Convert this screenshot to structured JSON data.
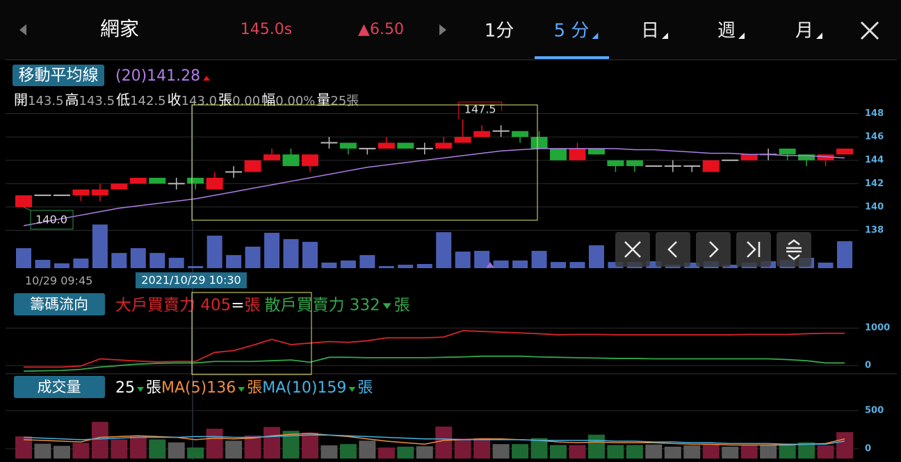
{
  "header": {
    "stock": "網家",
    "price": "145.0s",
    "change": "▲6.50",
    "tabs": [
      "1分",
      "5 分",
      "日",
      "週",
      "月"
    ],
    "active_tab": 1
  },
  "price_chart": {
    "type": "candlestick",
    "ma_label": "移動平均線",
    "ma_value": "(20)141.28",
    "ohlc": [
      {
        "label": "開",
        "value": "143.5"
      },
      {
        "label": "高",
        "value": "143.5"
      },
      {
        "label": "低",
        "value": "142.5"
      },
      {
        "label": "收",
        "value": "143.0"
      },
      {
        "label": "張",
        "value": "0.00"
      },
      {
        "label": "幅",
        "value": "0.00%"
      },
      {
        "label": "量",
        "value": "25張"
      }
    ],
    "ylim": [
      137.2,
      148.8
    ],
    "yticks": [
      138,
      140,
      142,
      144,
      146,
      148
    ],
    "open": [
      140.0,
      141.0,
      141.0,
      141.0,
      141.0,
      141.5,
      142.0,
      142.5,
      142.0,
      142.5,
      141.5,
      143.0,
      143.0,
      144.0,
      144.5,
      143.5,
      145.5,
      145.5,
      145.0,
      145.0,
      145.5,
      145.0,
      145.0,
      145.5,
      146.0,
      146.5,
      146.5,
      146.0,
      145.0,
      144.0,
      145.0,
      144.0,
      144.0,
      143.5,
      143.5,
      143.5,
      143.0,
      144.0,
      144.0,
      144.5,
      145.0,
      144.5,
      144.0,
      144.5
    ],
    "high": [
      141.0,
      141.0,
      141.0,
      141.5,
      142.0,
      142.0,
      142.5,
      142.5,
      142.5,
      142.5,
      143.0,
      143.5,
      144.0,
      145.0,
      145.0,
      144.5,
      146.0,
      145.5,
      145.0,
      146.0,
      145.5,
      145.5,
      146.0,
      147.5,
      147.0,
      147.0,
      146.5,
      146.5,
      145.0,
      145.5,
      145.0,
      144.0,
      144.0,
      143.5,
      144.0,
      143.5,
      144.0,
      144.0,
      144.5,
      145.0,
      145.0,
      144.5,
      144.5,
      145.0
    ],
    "low": [
      140.0,
      141.0,
      141.0,
      140.5,
      140.5,
      141.5,
      142.0,
      142.0,
      141.5,
      141.5,
      141.5,
      142.5,
      143.0,
      144.0,
      143.5,
      143.0,
      145.0,
      144.5,
      144.5,
      145.0,
      145.0,
      144.5,
      145.0,
      145.5,
      146.0,
      146.0,
      145.5,
      145.0,
      144.0,
      144.0,
      144.5,
      143.0,
      143.0,
      143.5,
      143.0,
      143.0,
      143.0,
      144.0,
      144.0,
      144.0,
      144.0,
      143.5,
      143.5,
      144.5
    ],
    "close": [
      141.0,
      141.0,
      141.0,
      141.5,
      141.5,
      142.0,
      142.5,
      142.0,
      142.0,
      142.0,
      142.5,
      143.0,
      144.0,
      144.5,
      143.5,
      144.5,
      145.5,
      145.0,
      145.0,
      145.5,
      145.0,
      145.0,
      145.5,
      146.0,
      146.5,
      146.5,
      146.0,
      145.0,
      144.0,
      145.0,
      144.5,
      143.5,
      143.5,
      143.5,
      143.5,
      143.5,
      144.0,
      144.0,
      144.5,
      144.5,
      144.5,
      144.0,
      144.5,
      145.0
    ],
    "ma": [
      138.4,
      138.7,
      139.0,
      139.3,
      139.6,
      139.9,
      140.1,
      140.3,
      140.5,
      140.7,
      141.0,
      141.3,
      141.6,
      141.9,
      142.2,
      142.5,
      142.8,
      143.1,
      143.4,
      143.6,
      143.8,
      144.0,
      144.2,
      144.4,
      144.6,
      144.8,
      144.9,
      145.0,
      145.0,
      145.0,
      145.0,
      145.0,
      144.9,
      144.9,
      144.8,
      144.7,
      144.6,
      144.6,
      144.5,
      144.5,
      144.4,
      144.4,
      144.3,
      144.2
    ],
    "high_label": "147.5",
    "low_label": "140.0",
    "up_color": "#e8101e",
    "down_color": "#20a838",
    "flat_color": "#bbbbbb",
    "ma_color": "#b07ee8"
  },
  "time_axis": {
    "start": "10/29 09:45",
    "cursor": "2021/10/29 10:30"
  },
  "chip_chart": {
    "type": "line",
    "label": "籌碼流向",
    "equals": "=",
    "unit": "張",
    "ylim": [
      -200,
      1300
    ],
    "yticks": [
      0,
      1000
    ],
    "series": [
      {
        "name": "大戶買賣力 405",
        "color": "#d8252a",
        "values": [
          -40,
          -40,
          -40,
          -10,
          180,
          150,
          120,
          100,
          110,
          110,
          350,
          400,
          540,
          700,
          560,
          600,
          640,
          620,
          660,
          740,
          740,
          740,
          760,
          930,
          910,
          890,
          870,
          850,
          820,
          830,
          830,
          820,
          820,
          820,
          820,
          820,
          820,
          820,
          830,
          830,
          830,
          850,
          860,
          860
        ]
      },
      {
        "name": "散戶買賣力 332",
        "color": "#34a84a",
        "values": [
          -150,
          -140,
          -130,
          -100,
          -40,
          0,
          40,
          60,
          70,
          70,
          110,
          110,
          110,
          130,
          150,
          90,
          220,
          220,
          210,
          210,
          210,
          210,
          220,
          230,
          250,
          250,
          250,
          230,
          220,
          210,
          200,
          190,
          190,
          180,
          180,
          180,
          180,
          180,
          180,
          180,
          160,
          130,
          70,
          70
        ]
      }
    ]
  },
  "volume_chart": {
    "type": "bar",
    "label": "成交量",
    "current": "25",
    "unit": "張",
    "ylim": [
      -127,
      618
    ],
    "yticks": [
      0,
      500
    ],
    "overlay_color": "#4a5fb4",
    "values": [
      162,
      67,
      39,
      78,
      353,
      123,
      162,
      123,
      84,
      17,
      263,
      106,
      174,
      286,
      235,
      213,
      45,
      62,
      106,
      17,
      28,
      34,
      291,
      134,
      140,
      62,
      62,
      140,
      50,
      50,
      185,
      50,
      50,
      56,
      28,
      45,
      56,
      28,
      45,
      56,
      67,
      84,
      45,
      218
    ],
    "series": [
      {
        "name": "MA(5)136",
        "color": "#f0903c",
        "values": [
          120,
          110,
          100,
          90,
          150,
          160,
          170,
          160,
          150,
          120,
          140,
          130,
          140,
          170,
          190,
          200,
          180,
          160,
          130,
          100,
          80,
          60,
          110,
          120,
          130,
          130,
          120,
          110,
          90,
          80,
          90,
          80,
          80,
          80,
          70,
          60,
          60,
          50,
          50,
          50,
          50,
          60,
          70,
          130
        ]
      },
      {
        "name": "MA(10)159",
        "color": "#45b4e6",
        "values": [
          150,
          140,
          130,
          120,
          130,
          140,
          150,
          150,
          150,
          160,
          160,
          150,
          150,
          160,
          170,
          180,
          180,
          170,
          160,
          150,
          140,
          130,
          130,
          120,
          120,
          120,
          120,
          110,
          110,
          110,
          110,
          100,
          100,
          90,
          90,
          80,
          80,
          70,
          70,
          70,
          60,
          60,
          60,
          100
        ]
      }
    ]
  }
}
